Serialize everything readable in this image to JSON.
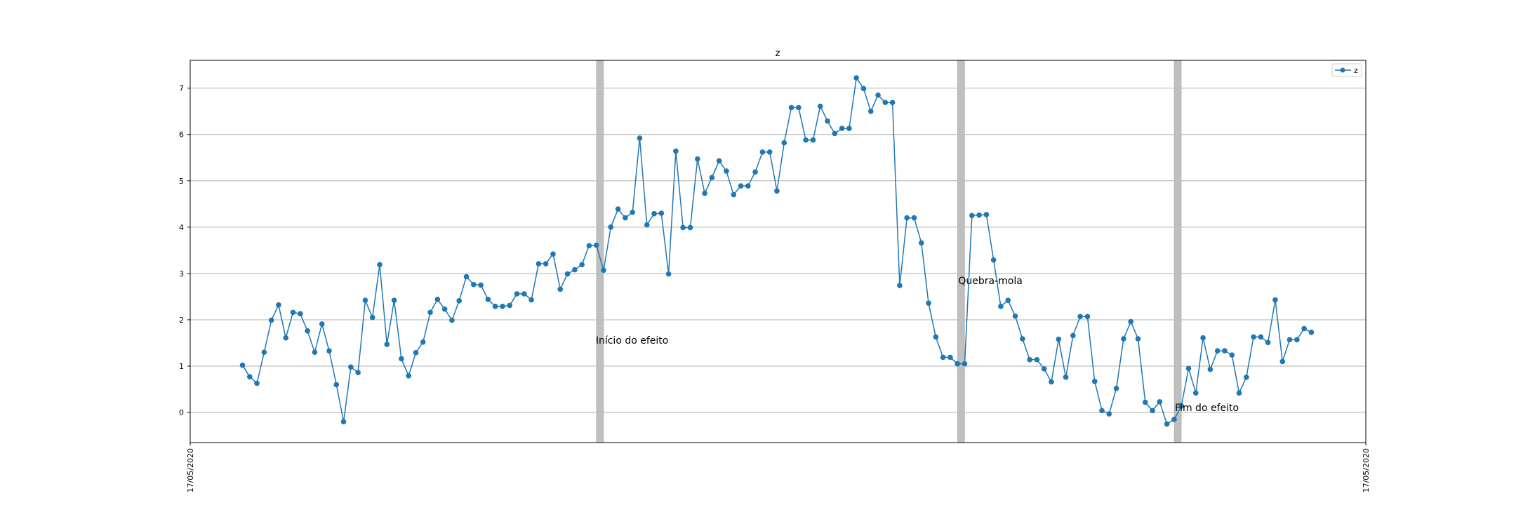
{
  "chart_data": {
    "type": "line",
    "title": "z",
    "xlabel": "",
    "ylabel": "",
    "ylim": [
      -0.65,
      7.6
    ],
    "x_tick_labels": [
      "17/05/2020",
      "17/05/2020"
    ],
    "y_ticks": [
      0,
      1,
      2,
      3,
      4,
      5,
      6,
      7
    ],
    "grid": "horizontal",
    "legend_position": "top-right",
    "colors": {
      "series": "#1f77b4",
      "band": "#bfbfbf"
    },
    "series": [
      {
        "name": "z",
        "marker": "circle",
        "values": [
          1.02,
          0.77,
          0.63,
          1.3,
          1.99,
          2.32,
          1.61,
          2.16,
          2.13,
          1.76,
          1.3,
          1.91,
          1.33,
          0.6,
          -0.2,
          0.98,
          0.86,
          2.42,
          2.05,
          3.19,
          1.47,
          2.42,
          1.16,
          0.79,
          1.29,
          1.52,
          2.16,
          2.44,
          2.23,
          1.99,
          2.41,
          2.93,
          2.76,
          2.75,
          2.44,
          2.29,
          2.29,
          2.31,
          2.56,
          2.56,
          2.43,
          3.21,
          3.21,
          3.42,
          2.66,
          2.99,
          3.08,
          3.19,
          3.6,
          3.61,
          3.07,
          4.0,
          4.39,
          4.2,
          4.32,
          5.92,
          4.05,
          4.29,
          4.3,
          2.99,
          5.64,
          3.99,
          3.99,
          5.47,
          4.73,
          5.07,
          5.43,
          5.21,
          4.7,
          4.89,
          4.89,
          5.19,
          5.62,
          5.62,
          4.78,
          5.82,
          6.58,
          6.58,
          5.88,
          5.88,
          6.61,
          6.29,
          6.02,
          6.13,
          6.13,
          7.22,
          6.99,
          6.5,
          6.85,
          6.69,
          6.69,
          2.74,
          4.2,
          4.2,
          3.66,
          2.36,
          1.63,
          1.19,
          1.19,
          1.05,
          1.05,
          4.25,
          4.26,
          4.27,
          3.29,
          2.29,
          2.42,
          2.08,
          1.59,
          1.14,
          1.14,
          0.94,
          0.66,
          1.58,
          0.76,
          1.66,
          2.07,
          2.07,
          0.67,
          0.04,
          -0.03,
          0.52,
          1.59,
          1.96,
          1.59,
          0.22,
          0.04,
          0.23,
          -0.25,
          -0.15,
          0.14,
          0.95,
          0.42,
          1.61,
          0.93,
          1.33,
          1.33,
          1.24,
          0.42,
          0.76,
          1.63,
          1.63,
          1.51,
          2.43,
          1.1,
          1.57,
          1.57,
          1.81,
          1.73
        ]
      }
    ],
    "shaded_bands": [
      {
        "index": 49.5,
        "label": "Início do efeito"
      },
      {
        "index": 99.5,
        "label": "Quebra-mola"
      },
      {
        "index": 129.5,
        "label": "Fim do efeito"
      }
    ]
  }
}
